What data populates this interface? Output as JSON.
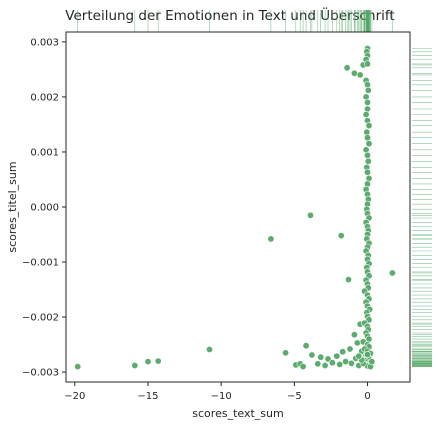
{
  "chart_data": {
    "type": "scatter",
    "title": "Verteilung der Emotionen in Text und Überschrift",
    "xlabel": "scores_text_sum",
    "ylabel": "scores_titel_sum",
    "xlim": [
      -20.6,
      2.9
    ],
    "ylim": [
      -0.00318,
      0.00318
    ],
    "xticks": [
      -20,
      -15,
      -10,
      -5,
      0
    ],
    "xtick_labels": [
      "−20",
      "−15",
      "−10",
      "−5",
      "0"
    ],
    "yticks": [
      -0.003,
      -0.002,
      -0.001,
      0.0,
      0.001,
      0.002,
      0.003
    ],
    "ytick_labels": [
      "−0.003",
      "−0.002",
      "−0.001",
      "0.000",
      "0.001",
      "0.002",
      "0.003"
    ],
    "grid": false,
    "marginal": "rug",
    "colors": {
      "point": "#55a868",
      "rug": "#55a868",
      "axes": "#262626"
    },
    "points": [
      [
        -19.8,
        -0.0029
      ],
      [
        -15.9,
        -0.00288
      ],
      [
        -15.0,
        -0.00281
      ],
      [
        -14.3,
        -0.0028
      ],
      [
        -10.8,
        -0.00259
      ],
      [
        -6.6,
        -0.00058
      ],
      [
        -5.6,
        -0.00265
      ],
      [
        -4.9,
        -0.00287
      ],
      [
        -4.6,
        -0.00285
      ],
      [
        -4.4,
        -0.0029
      ],
      [
        -4.2,
        -0.00252
      ],
      [
        -3.9,
        -0.00015
      ],
      [
        -3.8,
        -0.00269
      ],
      [
        -3.4,
        -0.00285
      ],
      [
        -3.2,
        -0.00273
      ],
      [
        -2.9,
        -0.00288
      ],
      [
        -2.7,
        -0.00276
      ],
      [
        -2.4,
        -0.00283
      ],
      [
        -2.1,
        -0.00271
      ],
      [
        -1.9,
        -0.00286
      ],
      [
        -1.8,
        -0.00052
      ],
      [
        -1.7,
        -0.00263
      ],
      [
        -1.5,
        -0.00281
      ],
      [
        -1.3,
        -0.00132
      ],
      [
        -1.2,
        -0.00258
      ],
      [
        -1.1,
        -0.00284
      ],
      [
        -0.9,
        -0.00232
      ],
      [
        -0.8,
        -0.00275
      ],
      [
        -0.7,
        -0.00247
      ],
      [
        -0.6,
        -0.00288
      ],
      [
        -0.5,
        -0.00213
      ],
      [
        -0.4,
        -0.00262
      ],
      [
        -0.9,
        0.00243
      ],
      [
        -0.5,
        0.0024
      ],
      [
        -1.4,
        0.00253
      ],
      [
        -0.3,
        0.00258
      ],
      [
        1.7,
        -0.0012
      ],
      [
        0.0,
        0.00288
      ],
      [
        -0.05,
        0.00282
      ],
      [
        0.0,
        0.00275
      ],
      [
        -0.1,
        0.00268
      ],
      [
        0.0,
        0.0026
      ],
      [
        -0.1,
        0.0023
      ],
      [
        0.0,
        0.00222
      ],
      [
        0.05,
        0.00212
      ],
      [
        -0.1,
        0.002
      ],
      [
        0.0,
        0.0019
      ],
      [
        0.0,
        0.00178
      ],
      [
        -0.1,
        0.00168
      ],
      [
        0.0,
        0.00157
      ],
      [
        0.1,
        0.00148
      ],
      [
        -0.05,
        0.00136
      ],
      [
        0.0,
        0.00126
      ],
      [
        0.1,
        0.00115
      ],
      [
        -0.1,
        0.00104
      ],
      [
        0.0,
        0.00094
      ],
      [
        0.05,
        0.00083
      ],
      [
        -0.05,
        0.00072
      ],
      [
        0.0,
        0.00063
      ],
      [
        0.1,
        0.00052
      ],
      [
        0.0,
        0.00042
      ],
      [
        -0.1,
        0.00032
      ],
      [
        0.0,
        0.00023
      ],
      [
        0.05,
        0.00014
      ],
      [
        0.0,
        5e-05
      ],
      [
        -0.05,
        -4e-05
      ],
      [
        0.0,
        -0.00012
      ],
      [
        0.1,
        -0.0002
      ],
      [
        -0.1,
        -0.00028
      ],
      [
        0.0,
        -0.00036
      ],
      [
        0.05,
        -0.00043
      ],
      [
        0.0,
        -0.0005
      ],
      [
        -0.05,
        -0.00058
      ],
      [
        0.1,
        -0.00066
      ],
      [
        0.0,
        -0.00073
      ],
      [
        -0.1,
        -0.0008
      ],
      [
        0.05,
        -0.00088
      ],
      [
        0.0,
        -0.00095
      ],
      [
        0.1,
        -0.00103
      ],
      [
        -0.05,
        -0.0011
      ],
      [
        0.0,
        -0.00118
      ],
      [
        0.1,
        -0.00125
      ],
      [
        -0.1,
        -0.00133
      ],
      [
        0.0,
        -0.0014
      ],
      [
        0.05,
        -0.00147
      ],
      [
        -0.2,
        -0.00153
      ],
      [
        0.0,
        -0.0016
      ],
      [
        0.1,
        -0.00167
      ],
      [
        -0.1,
        -0.00173
      ],
      [
        0.0,
        -0.0018
      ],
      [
        0.15,
        -0.00186
      ],
      [
        -0.05,
        -0.00192
      ],
      [
        0.0,
        -0.00199
      ],
      [
        0.1,
        -0.00205
      ],
      [
        -0.2,
        -0.00211
      ],
      [
        0.0,
        -0.00217
      ],
      [
        0.05,
        -0.00223
      ],
      [
        -0.1,
        -0.00229
      ],
      [
        0.0,
        -0.00235
      ],
      [
        0.1,
        -0.0024
      ],
      [
        -0.3,
        -0.00245
      ],
      [
        0.0,
        -0.0025
      ],
      [
        0.1,
        -0.00254
      ],
      [
        -0.2,
        -0.00258
      ],
      [
        0.0,
        -0.00262
      ],
      [
        0.2,
        -0.00266
      ],
      [
        -0.1,
        -0.0027
      ],
      [
        0.0,
        -0.00273
      ],
      [
        0.1,
        -0.00276
      ],
      [
        -0.2,
        -0.00279
      ],
      [
        0.0,
        -0.00282
      ],
      [
        0.1,
        -0.00285
      ],
      [
        -0.1,
        -0.00287
      ],
      [
        0.0,
        -0.00289
      ],
      [
        0.2,
        -0.0029
      ],
      [
        -0.3,
        -0.00284
      ],
      [
        -0.4,
        -0.00278
      ],
      [
        0.3,
        -0.00281
      ],
      [
        -0.6,
        -0.00271
      ],
      [
        0.0,
        -0.00268
      ]
    ]
  }
}
